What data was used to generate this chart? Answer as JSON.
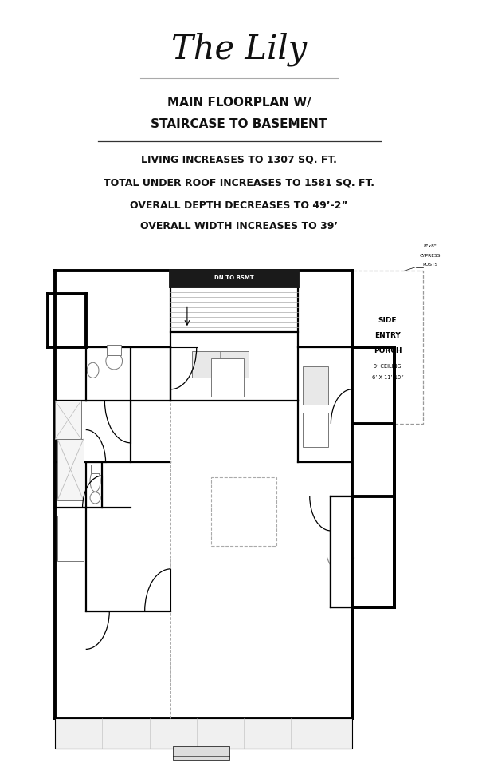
{
  "title_script": "The Lily",
  "title_sub1": "MAIN FLOORPLAN W/",
  "title_sub2": "STAIRCASE TO BASEMENT",
  "line1": "LIVING INCREASES TO 1307 SQ. FT.",
  "line2": "TOTAL UNDER ROOF INCREASES TO 1581 SQ. FT.",
  "line3": "OVERALL DEPTH DECREASES TO 49’-2”",
  "line4": "OVERALL WIDTH INCREASES TO 39’",
  "porch_line1": "SIDE",
  "porch_line2": "ENTRY",
  "porch_line3": "PORCH",
  "porch_line4": "9’ CEILING",
  "porch_line5": "6’ X 11’-10”",
  "stair_label": "DN TO BSMT",
  "posts_line1": "8\"x8\"",
  "posts_line2": "CYPRESS",
  "posts_line3": "POSTS",
  "bg_color": "#ffffff",
  "wall_color": "#000000",
  "gray_color": "#888888",
  "light_gray": "#cccccc",
  "dark_fill": "#222222"
}
